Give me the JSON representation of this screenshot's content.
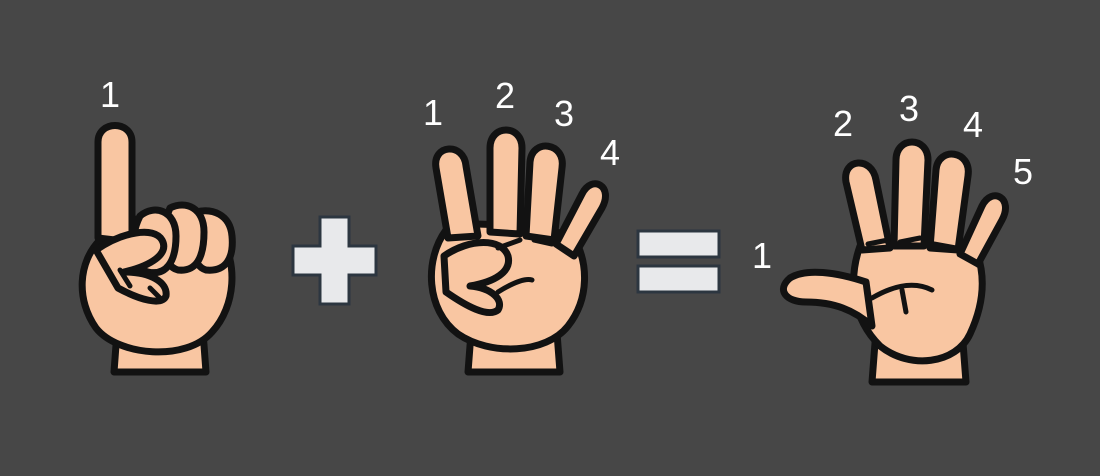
{
  "equation": {
    "left_hand": {
      "finger_count": 1,
      "labels": [
        "1"
      ]
    },
    "operator_1": "plus",
    "middle_hand": {
      "finger_count": 4,
      "labels": [
        "1",
        "2",
        "3",
        "4"
      ]
    },
    "operator_2": "equals",
    "result_hand": {
      "finger_count": 5,
      "labels": [
        "1",
        "2",
        "3",
        "4",
        "5"
      ]
    }
  },
  "colors": {
    "background": "#474747",
    "skin": "#f9c6a2",
    "outline": "#121212",
    "operator_fill": "#e8e9eb",
    "label": "#ffffff"
  }
}
